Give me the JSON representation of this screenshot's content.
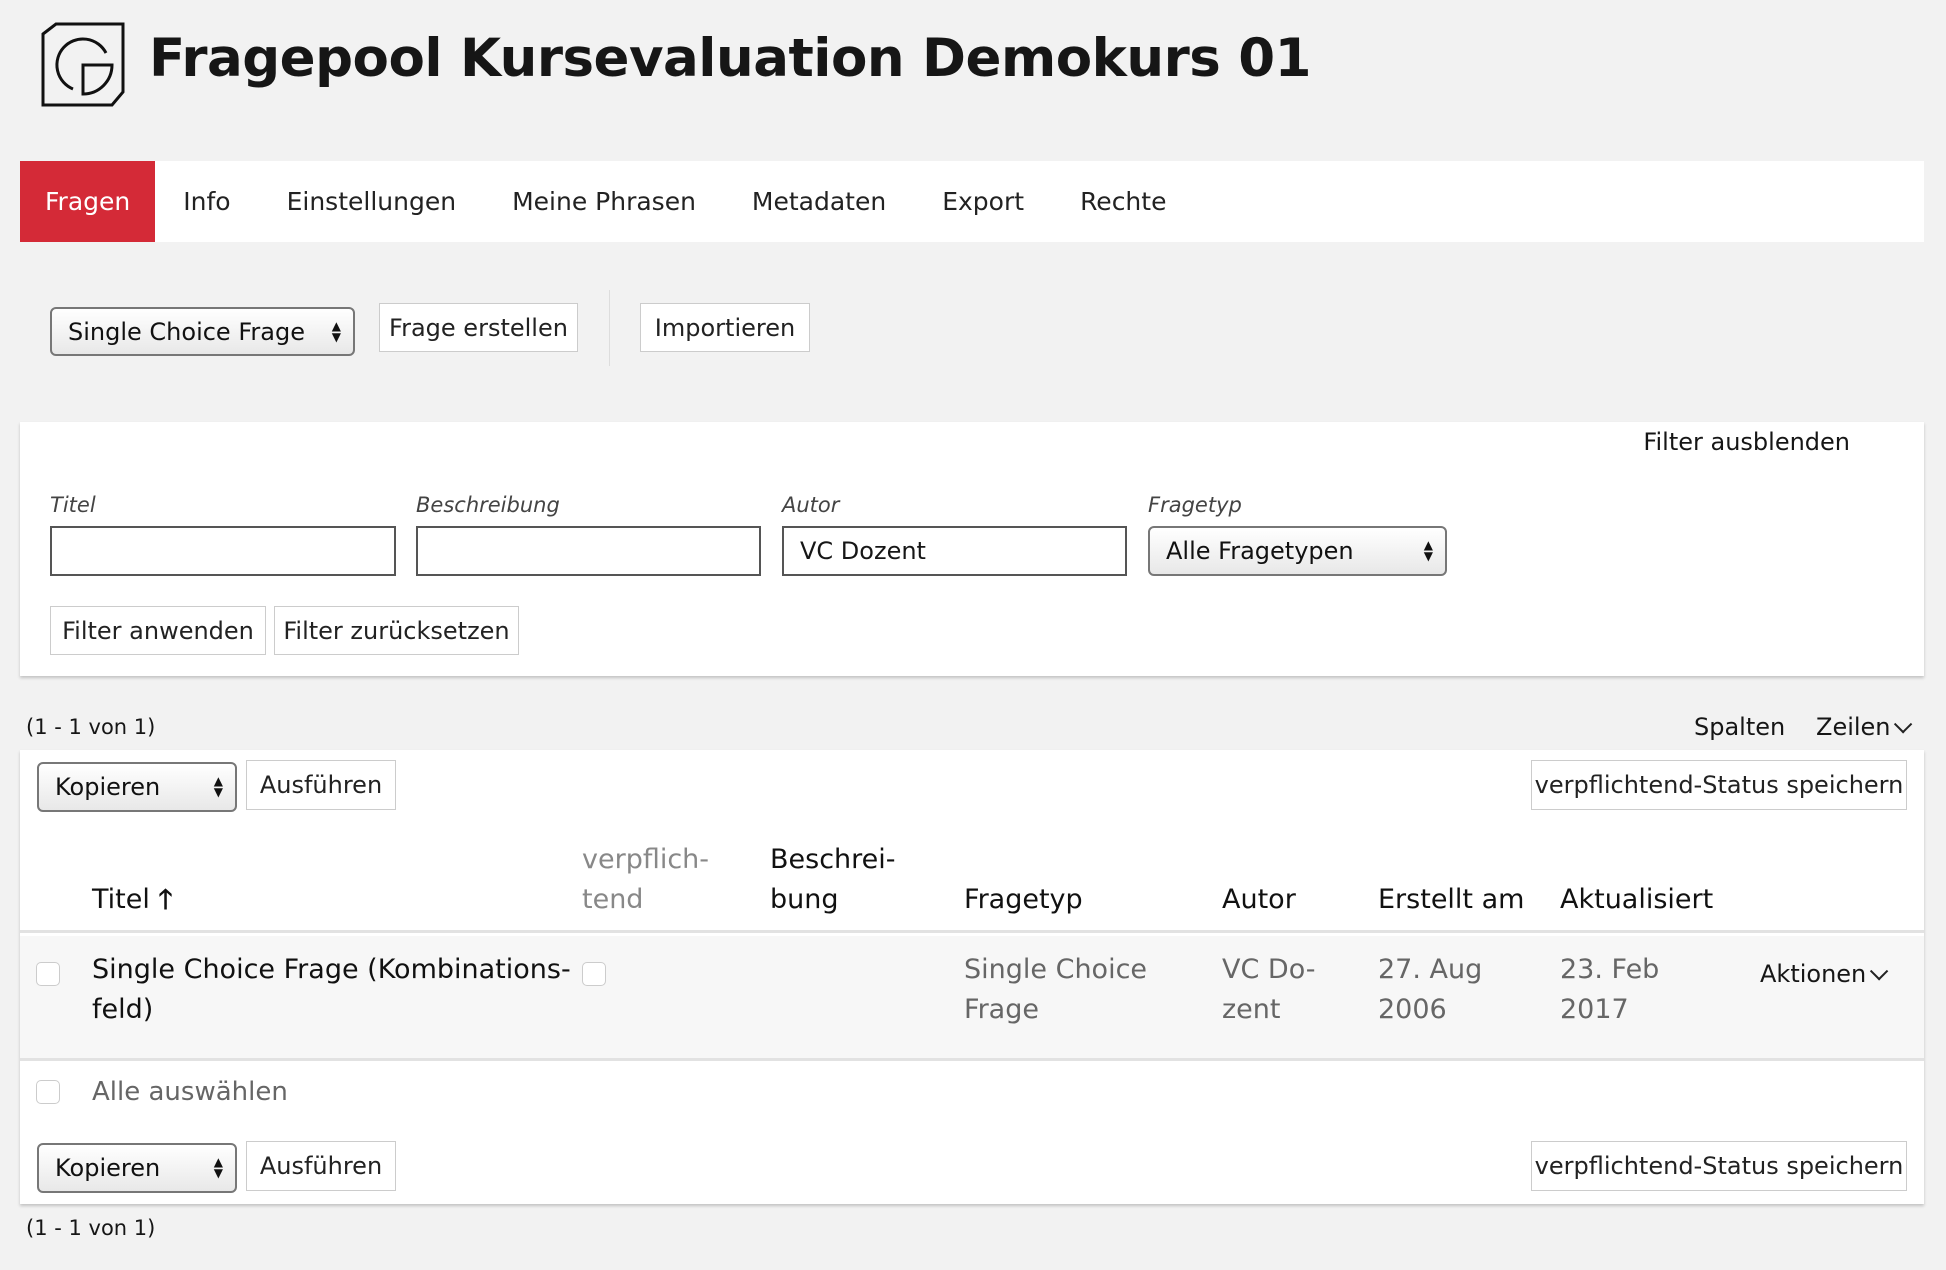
{
  "header": {
    "title": "Fragepool Kursevaluation Demokurs 01",
    "logo": "ilias-logo-icon"
  },
  "tabs": [
    {
      "label": "Fragen",
      "active": true
    },
    {
      "label": "Info"
    },
    {
      "label": "Einstellungen"
    },
    {
      "label": "Meine Phrasen"
    },
    {
      "label": "Metadaten"
    },
    {
      "label": "Export"
    },
    {
      "label": "Rechte"
    }
  ],
  "toolbar": {
    "type_select": "Single Choice Frage",
    "create": "Frage erstellen",
    "import": "Importieren"
  },
  "filter": {
    "toggle": "Filter ausblenden",
    "fields": [
      {
        "label": "Titel",
        "value": ""
      },
      {
        "label": "Beschreibung",
        "value": ""
      },
      {
        "label": "Autor",
        "value": "VC Dozent"
      },
      {
        "label": "Fragetyp",
        "value": "Alle Fragetypen"
      }
    ],
    "apply": "Filter anwenden",
    "reset": "Filter zurücksetzen"
  },
  "table": {
    "count_top": "(1 - 1 von 1)",
    "count_bottom": "(1 - 1 von 1)",
    "columns_btn": "Spalten",
    "rows_btn": "Zeilen",
    "action_select": "Kopieren",
    "execute": "Ausführen",
    "save_status": "verpflichtend-Status speichern",
    "headers": {
      "title": "Titel",
      "mandatory": [
        "verpflich-",
        "tend"
      ],
      "description": [
        "Beschrei-",
        "bung"
      ],
      "type": "Fragetyp",
      "author": "Autor",
      "created": "Erstellt am",
      "updated": "Aktualisiert"
    },
    "rows": [
      {
        "title": [
          "Single Choice Frage (Kombinations-",
          "feld)"
        ],
        "type": [
          "Single Choice",
          "Frage"
        ],
        "author": [
          "VC Do-",
          "zent"
        ],
        "created": [
          "27. Aug",
          "2006"
        ],
        "updated": [
          "23. Feb",
          "2017"
        ],
        "actions": "Aktionen"
      }
    ],
    "select_all": "Alle auswählen"
  },
  "colors": {
    "accent": "#d42a37"
  }
}
